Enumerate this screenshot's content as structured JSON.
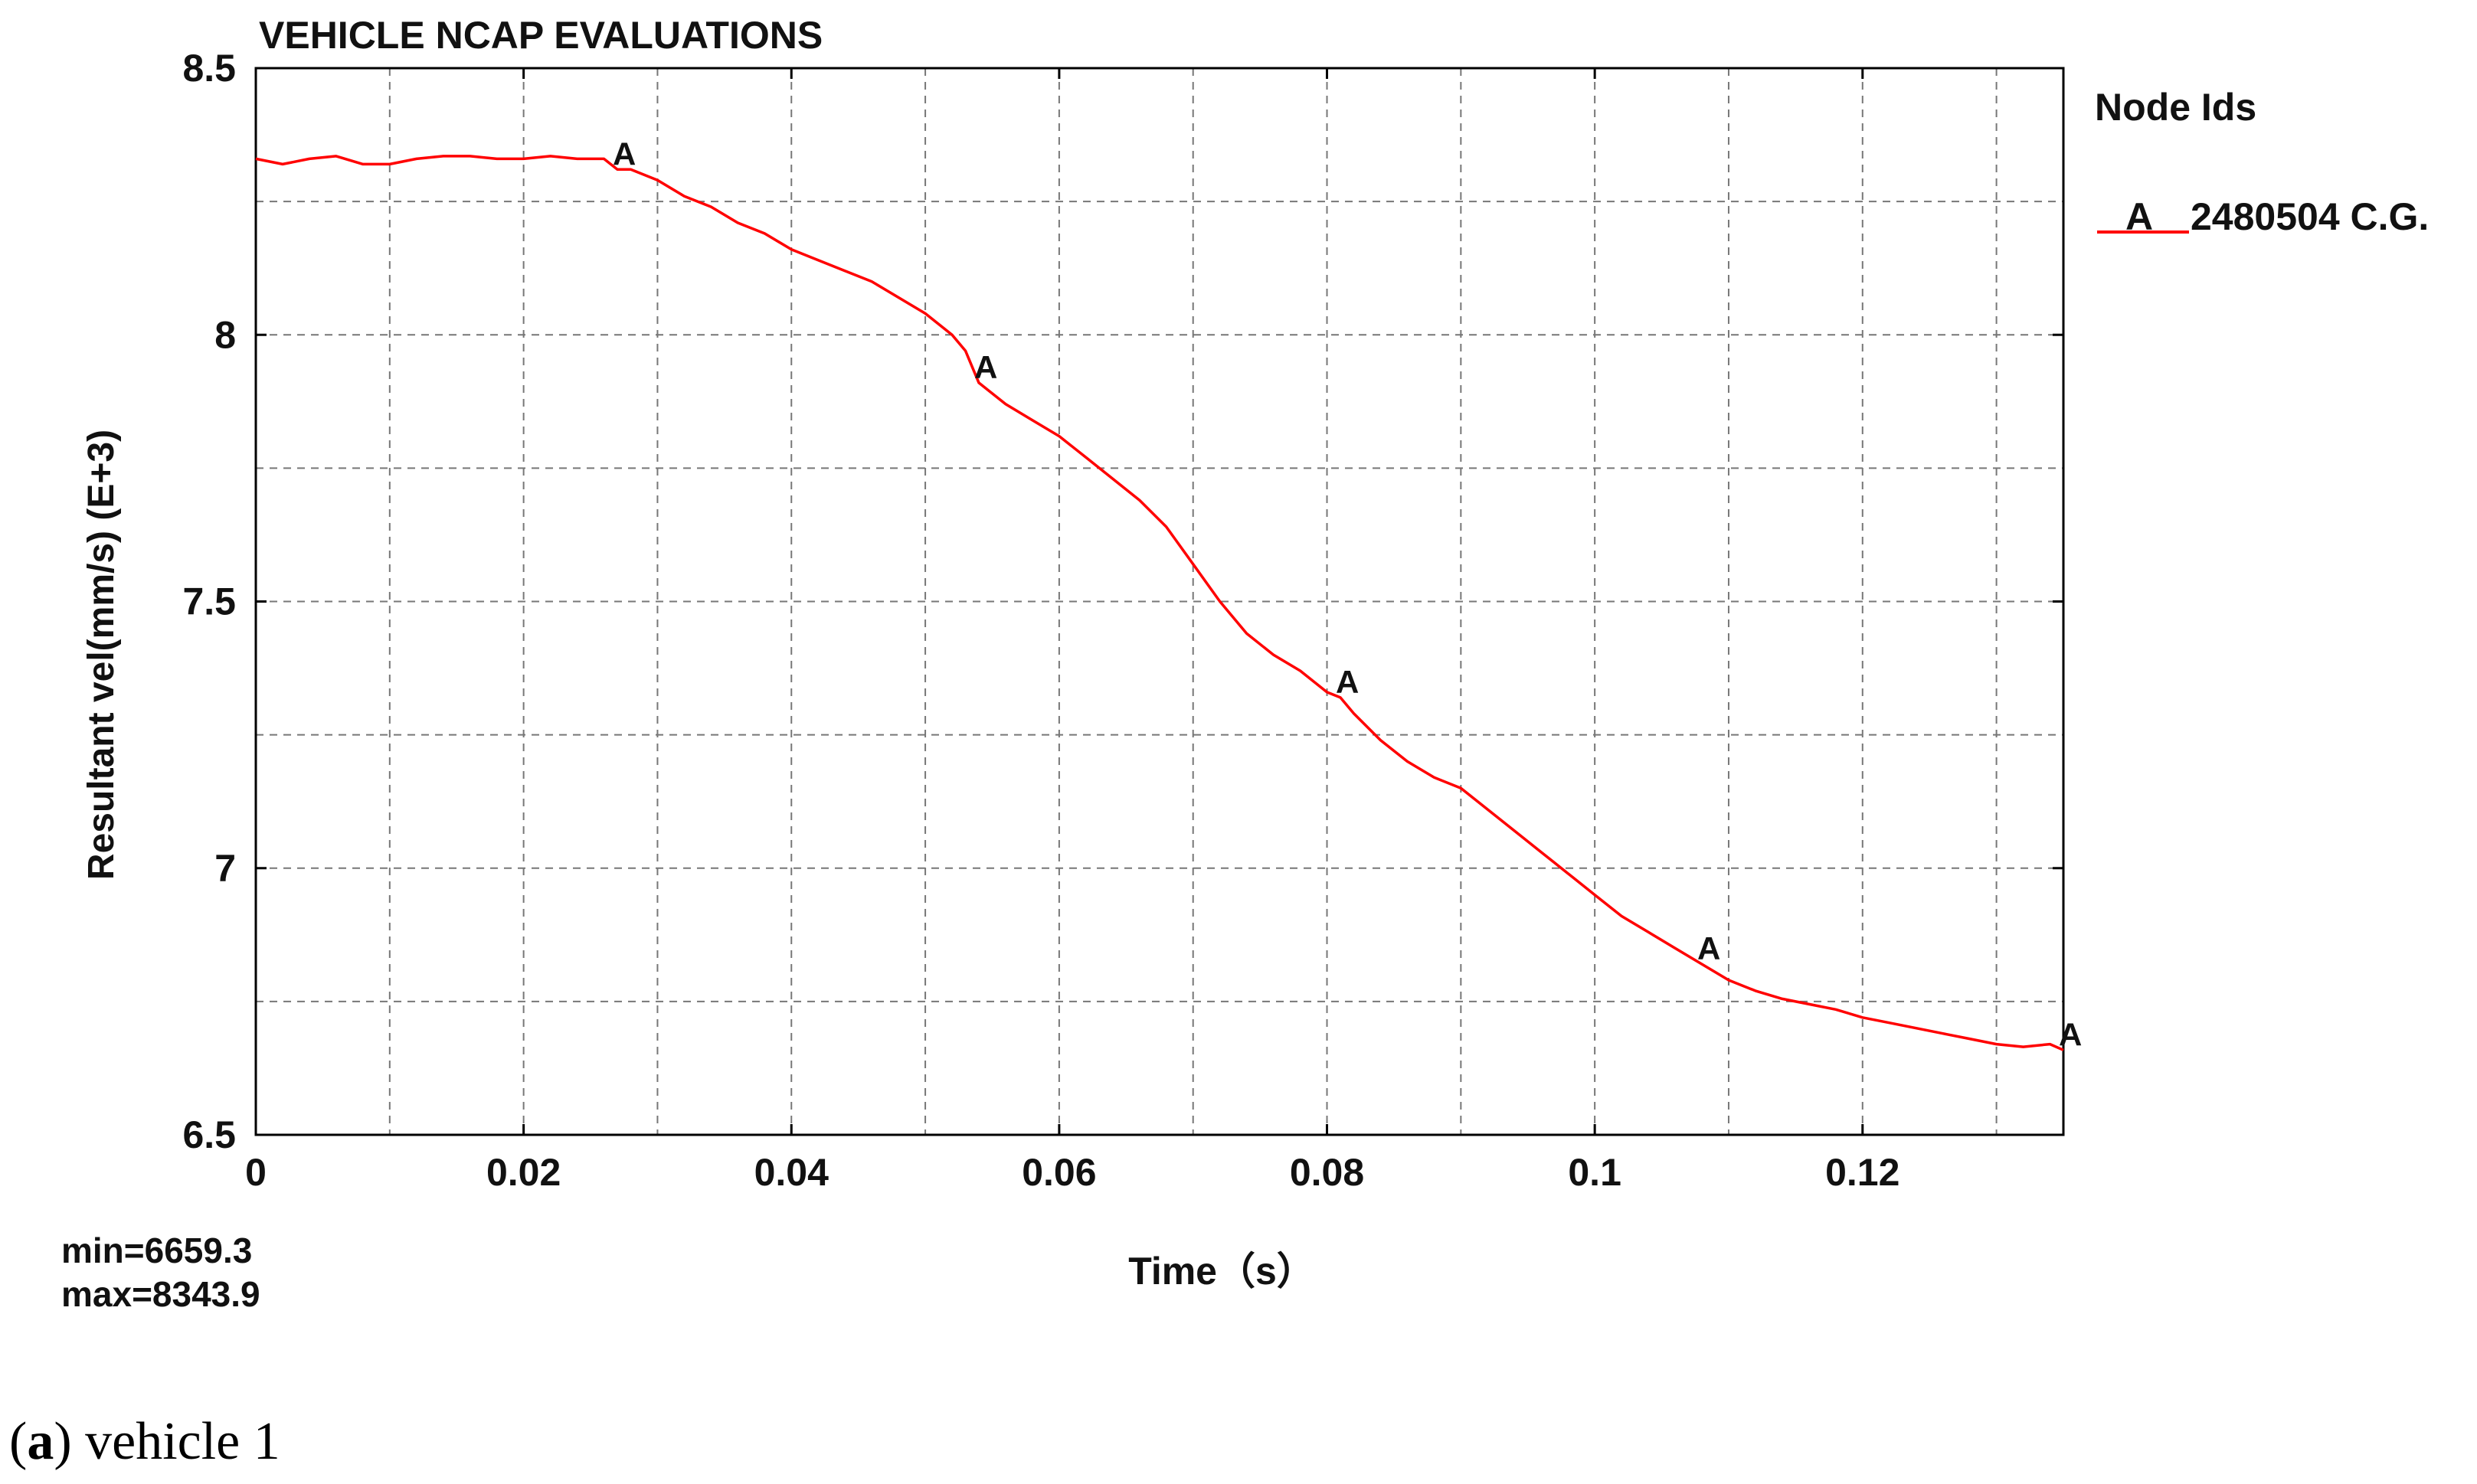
{
  "chart_data": {
    "type": "line",
    "title": "VEHICLE NCAP EVALUATIONS",
    "xlabel": "Time（s）",
    "ylabel": "Resultant vel(mm/s) (E+3)",
    "xlim": [
      0,
      0.135
    ],
    "ylim": [
      6.5,
      8.5
    ],
    "x_ticks": [
      0,
      0.02,
      0.04,
      0.06,
      0.08,
      0.1,
      0.12
    ],
    "x_tick_labels": [
      "0",
      "0.02",
      "0.04",
      "0.06",
      "0.08",
      "0.1",
      "0.12"
    ],
    "y_ticks": [
      6.5,
      7,
      7.5,
      8,
      8.5
    ],
    "y_tick_labels": [
      "6.5",
      "7",
      "7.5",
      "8",
      "8.5"
    ],
    "grid": true,
    "legend_title": "Node Ids",
    "legend_placement": "top-right",
    "series": [
      {
        "name": "2480504 C.G.",
        "marker_label": "A",
        "color": "#ff0000",
        "marker_x": [
          0.027,
          0.054,
          0.081,
          0.108,
          0.135
        ],
        "x": [
          0,
          0.002,
          0.004,
          0.006,
          0.008,
          0.01,
          0.012,
          0.014,
          0.016,
          0.018,
          0.02,
          0.022,
          0.024,
          0.026,
          0.027,
          0.028,
          0.03,
          0.032,
          0.034,
          0.036,
          0.038,
          0.04,
          0.042,
          0.044,
          0.046,
          0.048,
          0.05,
          0.052,
          0.053,
          0.054,
          0.056,
          0.058,
          0.06,
          0.062,
          0.064,
          0.066,
          0.068,
          0.07,
          0.072,
          0.074,
          0.076,
          0.078,
          0.08,
          0.081,
          0.082,
          0.084,
          0.086,
          0.088,
          0.09,
          0.092,
          0.094,
          0.096,
          0.098,
          0.1,
          0.102,
          0.104,
          0.106,
          0.108,
          0.11,
          0.112,
          0.114,
          0.116,
          0.118,
          0.12,
          0.122,
          0.124,
          0.126,
          0.128,
          0.13,
          0.132,
          0.134,
          0.135
        ],
        "values": [
          8.33,
          8.32,
          8.33,
          8.335,
          8.32,
          8.32,
          8.33,
          8.335,
          8.335,
          8.33,
          8.33,
          8.335,
          8.33,
          8.33,
          8.31,
          8.31,
          8.29,
          8.26,
          8.24,
          8.21,
          8.19,
          8.16,
          8.14,
          8.12,
          8.1,
          8.07,
          8.04,
          8.0,
          7.97,
          7.91,
          7.87,
          7.84,
          7.81,
          7.77,
          7.73,
          7.69,
          7.64,
          7.57,
          7.5,
          7.44,
          7.4,
          7.37,
          7.33,
          7.32,
          7.29,
          7.24,
          7.2,
          7.17,
          7.15,
          7.11,
          7.07,
          7.03,
          6.99,
          6.95,
          6.91,
          6.88,
          6.85,
          6.82,
          6.79,
          6.77,
          6.755,
          6.745,
          6.735,
          6.72,
          6.71,
          6.7,
          6.69,
          6.68,
          6.67,
          6.665,
          6.67,
          6.659
        ]
      }
    ],
    "annotations": [
      "min=6659.3",
      "max=8343.9"
    ]
  },
  "caption": {
    "letter": "a",
    "text": " vehicle 1"
  }
}
